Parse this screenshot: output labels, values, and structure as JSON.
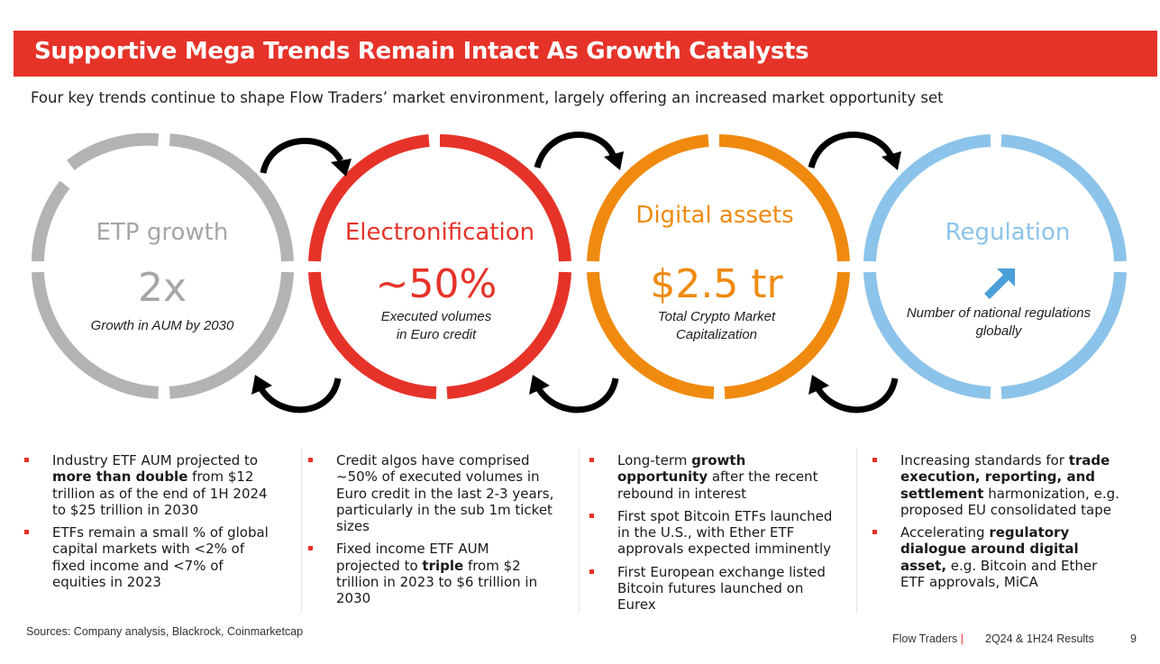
{
  "slide": {
    "title": "Supportive Mega Trends Remain Intact As Growth Catalysts",
    "subtitle": "Four key trends continue to shape Flow Traders’ market environment, largely offering an increased market opportunity set"
  },
  "colors": {
    "accent_red": "#e63329",
    "etp_gray": "#b3b3b3",
    "electronification_red": "#e63329",
    "digital_orange": "#ef8a0f",
    "regulation_blue": "#8cc3ea",
    "arrow_black": "#000000"
  },
  "circles": [
    {
      "title": "ETP growth",
      "metric": "2x",
      "description_lines": [
        "Growth in AUM by 2030"
      ]
    },
    {
      "title": "Electronification",
      "metric": "~50%",
      "description_lines": [
        "Executed volumes",
        "in Euro credit"
      ]
    },
    {
      "title": "Digital assets",
      "metric": "$2.5 tr",
      "description_lines": [
        "Total Crypto Market",
        "Capitalization"
      ]
    },
    {
      "title": "Regulation",
      "metric_icon": "up-right-arrow-icon",
      "description_lines": [
        "Number of national regulations",
        "globally"
      ]
    }
  ],
  "columns": [
    [
      [
        {
          "t": "Industry ETF AUM projected to "
        },
        {
          "t": "more than double",
          "b": true
        },
        {
          "t": " from $12 trillion as of the end of 1H 2024 to $25 trillion in 2030"
        }
      ],
      [
        {
          "t": "ETFs remain a small % of global capital markets with <2% of fixed income and <7% of equities in 2023"
        }
      ]
    ],
    [
      [
        {
          "t": "Credit algos have comprised ~50% of executed volumes in Euro credit in the last 2-3 years, particularly in the sub 1m ticket sizes"
        }
      ],
      [
        {
          "t": "Fixed income ETF AUM projected to "
        },
        {
          "t": "triple",
          "b": true
        },
        {
          "t": " from $2 trillion in 2023 to $6 trillion in 2030"
        }
      ]
    ],
    [
      [
        {
          "t": "Long-term "
        },
        {
          "t": "growth opportunity",
          "b": true
        },
        {
          "t": " after the recent rebound in interest"
        }
      ],
      [
        {
          "t": "First spot Bitcoin ETFs launched in the U.S., with Ether ETF approvals expected imminently"
        }
      ],
      [
        {
          "t": "First European exchange listed Bitcoin futures launched on Eurex"
        }
      ]
    ],
    [
      [
        {
          "t": "Increasing standards for "
        },
        {
          "t": "trade execution, reporting, and settlement",
          "b": true
        },
        {
          "t": " harmonization, e.g. proposed EU consolidated tape"
        }
      ],
      [
        {
          "t": "Accelerating "
        },
        {
          "t": "regulatory dialogue around digital asset,",
          "b": true
        },
        {
          "t": " e.g. Bitcoin and Ether ETF approvals, MiCA"
        }
      ]
    ]
  ],
  "footer": {
    "sources": "Sources: Company analysis, Blackrock, Coinmarketcap",
    "company": "Flow Traders",
    "separator": "|",
    "report": "2Q24 & 1H24 Results",
    "page_number": "9"
  }
}
